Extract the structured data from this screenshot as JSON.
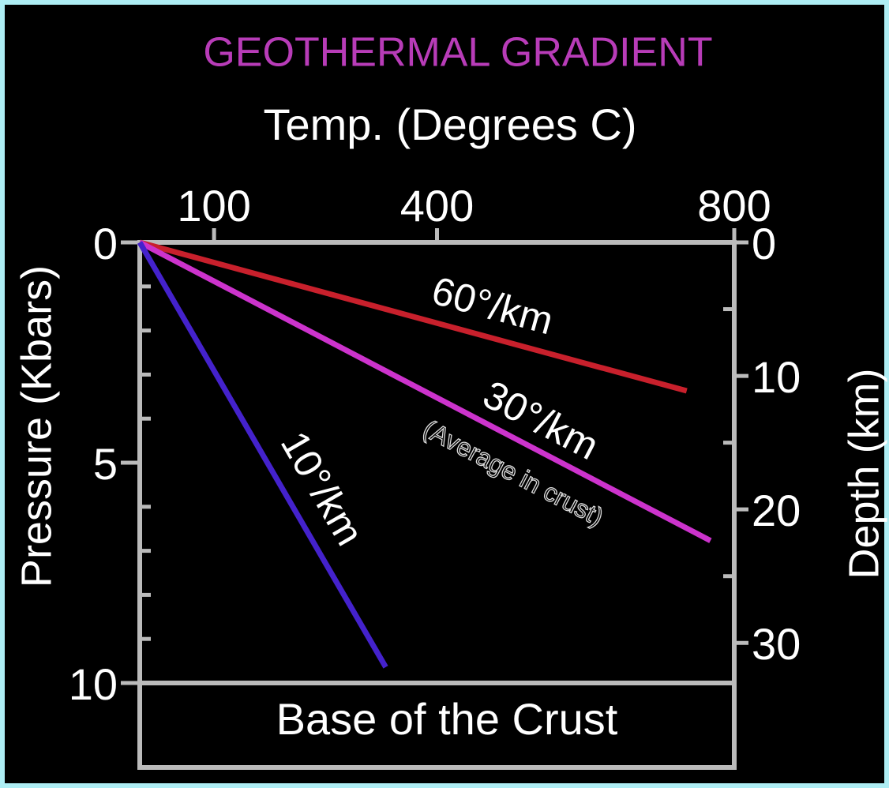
{
  "chart_data": {
    "type": "line",
    "title": "GEOTHERMAL GRADIENT",
    "xlabel": "Temp. (Degrees C)",
    "ylabel": "Pressure (Kbars)",
    "y2label": "Depth (km)",
    "xlim": [
      0,
      800
    ],
    "xticks": [
      100,
      400,
      800
    ],
    "ylim": [
      0,
      10
    ],
    "yticks": [
      0,
      5,
      10
    ],
    "yminor": [
      1,
      2,
      3,
      4,
      6,
      7,
      8,
      9
    ],
    "y2lim": [
      0,
      33
    ],
    "y2ticks": [
      0,
      10,
      20,
      30
    ],
    "y2minor": [
      5,
      15,
      25
    ],
    "series": [
      {
        "name": "60°/km",
        "color": "#c8202c",
        "x": [
          0,
          736
        ],
        "values": [
          0,
          3.37
        ]
      },
      {
        "name": "30°/km",
        "color": "#cc33cc",
        "x": [
          0,
          768
        ],
        "values": [
          0,
          6.77
        ],
        "annotation": "(Average in crust)"
      },
      {
        "name": "10°/km",
        "color": "#4422cc",
        "x": [
          0,
          331
        ],
        "values": [
          0,
          9.64
        ]
      }
    ],
    "footer": "Base of the Crust"
  }
}
